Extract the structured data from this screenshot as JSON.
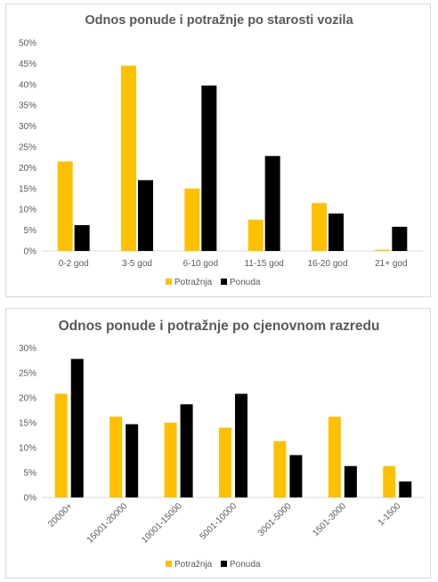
{
  "chart_data": [
    {
      "type": "bar",
      "title": "Odnos ponude i potražnje po starosti vozila",
      "categories": [
        "0-2 god",
        "3-5 god",
        "6-10 god",
        "11-15 god",
        "16-20 god",
        "21+ god"
      ],
      "series": [
        {
          "name": "Potražnja",
          "color": "#FFC000",
          "values": [
            21.5,
            44.5,
            15,
            7.5,
            11.5,
            0.3
          ]
        },
        {
          "name": "Ponuda",
          "color": "#000000",
          "values": [
            6.2,
            17,
            39.7,
            22.8,
            9,
            5.8
          ]
        }
      ],
      "ylim": [
        0,
        50
      ],
      "yticks": [
        "0%",
        "5%",
        "10%",
        "15%",
        "20%",
        "25%",
        "30%",
        "35%",
        "40%",
        "45%",
        "50%"
      ],
      "grid": false,
      "legend": "bottom",
      "xlabel": "",
      "ylabel": ""
    },
    {
      "type": "bar",
      "title": "Odnos ponude i potražnje po cjenovnom razredu",
      "categories": [
        "20000+",
        "15001-20000",
        "10001-15000",
        "5001-10000",
        "3001-5000",
        "1501-3000",
        "1-1500"
      ],
      "series": [
        {
          "name": "Potražnja",
          "color": "#FFC000",
          "values": [
            20.8,
            16.2,
            15,
            14,
            11.3,
            16.2,
            6.3
          ]
        },
        {
          "name": "Ponuda",
          "color": "#000000",
          "values": [
            27.8,
            14.7,
            18.7,
            20.8,
            8.5,
            6.3,
            3.2
          ]
        }
      ],
      "ylim": [
        0,
        30
      ],
      "yticks": [
        "0%",
        "5%",
        "10%",
        "15%",
        "20%",
        "25%",
        "30%"
      ],
      "grid": false,
      "legend": "bottom",
      "xlabel": "",
      "ylabel": ""
    }
  ]
}
